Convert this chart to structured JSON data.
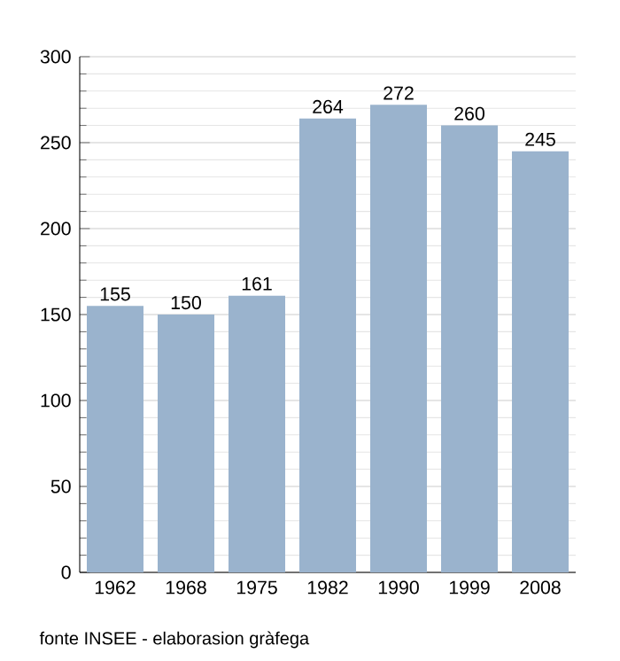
{
  "chart_data": {
    "type": "bar",
    "categories": [
      "1962",
      "1968",
      "1975",
      "1982",
      "1990",
      "1999",
      "2008"
    ],
    "values": [
      155,
      150,
      161,
      264,
      272,
      260,
      245
    ],
    "color": "#9ab3cd",
    "ylim": [
      0,
      300
    ],
    "yticks": [
      0,
      50,
      100,
      150,
      200,
      250,
      300
    ],
    "grid": "y",
    "data_labels": true,
    "annotations": [
      "fonte INSEE - elaborasion gràfega"
    ]
  }
}
